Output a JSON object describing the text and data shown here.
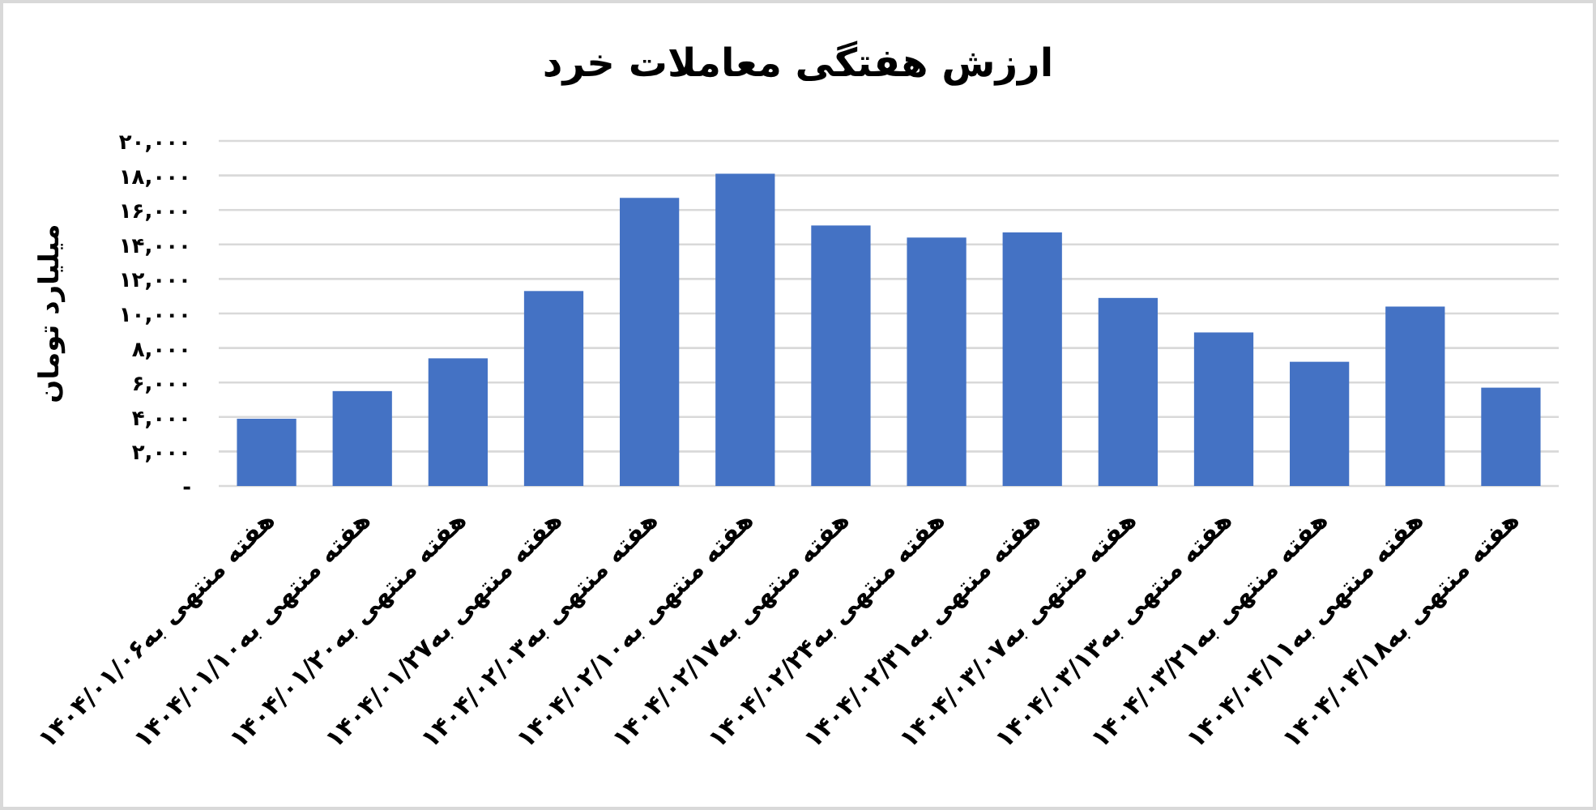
{
  "chart_data": {
    "type": "bar",
    "title": "ارزش هفتگی معاملات خرد",
    "ylabel": "میلیارد تومان",
    "categories": [
      "هفته منتهی به۱۴۰۴/۰۱/۰۶",
      "هفته منتهی به۱۴۰۴/۰۱/۱۰",
      "هفته منتهی به۱۴۰۴/۰۱/۲۰",
      "هفته منتهی به۱۴۰۴/۰۱/۲۷",
      "هفته منتهی به۱۴۰۴/۰۲/۰۳",
      "هفته منتهی به۱۴۰۴/۰۲/۱۰",
      "هفته منتهی به۱۴۰۴/۰۲/۱۷",
      "هفته منتهی به۱۴۰۴/۰۲/۲۴",
      "هفته منتهی به۱۴۰۴/۰۲/۳۱",
      "هفته منتهی به۱۴۰۴/۰۳/۰۷",
      "هفته منتهی به۱۴۰۴/۰۳/۱۳",
      "هفته منتهی به۱۴۰۴/۰۳/۲۱",
      "هفته منتهی به۱۴۰۴/۰۴/۱۱",
      "هفته منتهی به۱۴۰۴/۰۴/۱۸"
    ],
    "values": [
      3900,
      5500,
      7400,
      11300,
      16700,
      18100,
      15100,
      14400,
      14700,
      10900,
      8900,
      7200,
      10400,
      5700
    ],
    "color": "#4472c4",
    "ylim": [
      0,
      20000
    ],
    "yticks": [
      {
        "value": 0,
        "label": "-"
      },
      {
        "value": 2000,
        "label": "۲,۰۰۰"
      },
      {
        "value": 4000,
        "label": "۴,۰۰۰"
      },
      {
        "value": 6000,
        "label": "۶,۰۰۰"
      },
      {
        "value": 8000,
        "label": "۸,۰۰۰"
      },
      {
        "value": 10000,
        "label": "۱۰,۰۰۰"
      },
      {
        "value": 12000,
        "label": "۱۲,۰۰۰"
      },
      {
        "value": 14000,
        "label": "۱۴,۰۰۰"
      },
      {
        "value": 16000,
        "label": "۱۶,۰۰۰"
      },
      {
        "value": 18000,
        "label": "۱۸,۰۰۰"
      },
      {
        "value": 20000,
        "label": "۲۰,۰۰۰"
      }
    ],
    "grid": "y"
  }
}
